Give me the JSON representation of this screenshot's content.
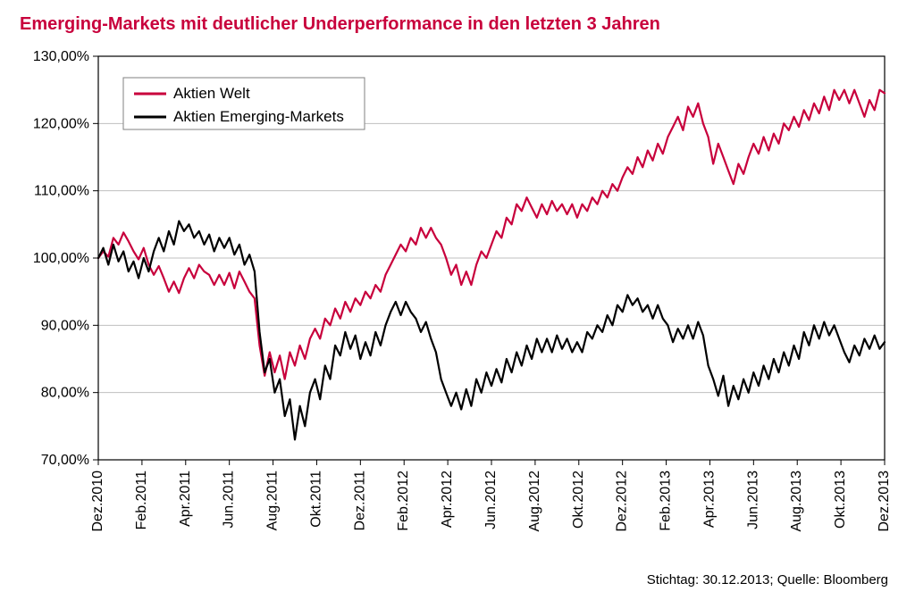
{
  "title": "Emerging-Markets mit deutlicher Underperformance in den letzten 3 Jahren",
  "footer": {
    "stichtag_label": "Stichtag:",
    "stichtag": "30.12.2013;",
    "quelle_label": "Quelle:",
    "quelle": "Bloomberg"
  },
  "chart": {
    "type": "line",
    "background_color": "#ffffff",
    "grid_color": "#bfbfbf",
    "axis_color": "#000000",
    "title_fontsize": 20,
    "label_fontsize": 16,
    "y": {
      "min": 70,
      "max": 130,
      "step": 10,
      "format": "0,00%"
    },
    "x": {
      "labels": [
        "Dez.2010",
        "Feb.2011",
        "Apr.2011",
        "Jun.2011",
        "Aug.2011",
        "Okt.2011",
        "Dez.2011",
        "Feb.2012",
        "Apr.2012",
        "Jun.2012",
        "Aug.2012",
        "Okt.2012",
        "Dez.2012",
        "Feb.2013",
        "Apr.2013",
        "Jun.2013",
        "Aug.2013",
        "Okt.2013",
        "Dez.2013"
      ],
      "n_points": 157,
      "rotated": true
    },
    "legend": {
      "position": "top-left",
      "border_color": "#808080",
      "items": [
        {
          "label": "Aktien Welt",
          "color": "#c8003c",
          "width": 2.2
        },
        {
          "label": "Aktien Emerging-Markets",
          "color": "#000000",
          "width": 2.2
        }
      ]
    },
    "series": [
      {
        "name": "Aktien Welt",
        "color": "#c8003c",
        "line_width": 2.2,
        "values": [
          100.0,
          101.0,
          100.2,
          103.0,
          102.0,
          103.8,
          102.5,
          101.0,
          99.8,
          101.5,
          99.0,
          97.5,
          98.8,
          97.0,
          95.0,
          96.5,
          94.8,
          97.0,
          98.5,
          97.0,
          99.0,
          98.0,
          97.5,
          96.0,
          97.5,
          96.0,
          97.8,
          95.5,
          98.0,
          96.5,
          95.0,
          94.0,
          87.0,
          82.5,
          86.0,
          83.0,
          85.5,
          82.0,
          86.0,
          84.0,
          87.0,
          85.0,
          88.0,
          89.5,
          88.0,
          91.0,
          90.0,
          92.5,
          91.0,
          93.5,
          92.0,
          94.0,
          93.0,
          95.0,
          94.0,
          96.0,
          95.0,
          97.5,
          99.0,
          100.5,
          102.0,
          101.0,
          103.0,
          102.0,
          104.5,
          103.0,
          104.5,
          103.0,
          102.0,
          100.0,
          97.5,
          99.0,
          96.0,
          98.0,
          96.0,
          99.0,
          101.0,
          100.0,
          102.0,
          104.0,
          103.0,
          106.0,
          105.0,
          108.0,
          107.0,
          109.0,
          107.5,
          106.0,
          108.0,
          106.5,
          108.5,
          107.0,
          108.0,
          106.5,
          108.0,
          106.0,
          108.0,
          107.0,
          109.0,
          108.0,
          110.0,
          109.0,
          111.0,
          110.0,
          112.0,
          113.5,
          112.5,
          115.0,
          113.5,
          116.0,
          114.5,
          117.0,
          115.5,
          118.0,
          119.5,
          121.0,
          119.0,
          122.5,
          121.0,
          123.0,
          120.0,
          118.0,
          114.0,
          117.0,
          115.0,
          113.0,
          111.0,
          114.0,
          112.5,
          115.0,
          117.0,
          115.5,
          118.0,
          116.0,
          118.5,
          117.0,
          120.0,
          119.0,
          121.0,
          119.5,
          122.0,
          120.5,
          123.0,
          121.5,
          124.0,
          122.0,
          125.0,
          123.5,
          125.0,
          123.0,
          125.0,
          123.0,
          121.0,
          123.5,
          122.0,
          125.0,
          124.5
        ]
      },
      {
        "name": "Aktien Emerging-Markets",
        "color": "#000000",
        "line_width": 2.2,
        "values": [
          100.0,
          101.5,
          99.0,
          102.0,
          99.5,
          101.0,
          98.0,
          99.5,
          97.0,
          100.0,
          98.0,
          101.0,
          103.0,
          101.0,
          104.0,
          102.0,
          105.5,
          104.0,
          105.0,
          103.0,
          104.0,
          102.0,
          103.5,
          101.0,
          103.0,
          101.5,
          103.0,
          100.5,
          102.0,
          99.0,
          100.5,
          98.0,
          89.0,
          83.0,
          85.0,
          80.0,
          82.0,
          76.5,
          79.0,
          73.0,
          78.0,
          75.0,
          80.0,
          82.0,
          79.0,
          84.0,
          82.0,
          87.0,
          85.5,
          89.0,
          86.5,
          88.5,
          85.0,
          87.5,
          85.5,
          89.0,
          87.0,
          90.0,
          92.0,
          93.5,
          91.5,
          93.5,
          92.0,
          91.0,
          89.0,
          90.5,
          88.0,
          86.0,
          82.0,
          80.0,
          78.0,
          80.0,
          77.5,
          80.5,
          78.0,
          82.0,
          80.0,
          83.0,
          81.0,
          83.5,
          81.5,
          85.0,
          83.0,
          86.0,
          84.0,
          87.0,
          85.0,
          88.0,
          86.0,
          88.0,
          86.0,
          88.5,
          86.5,
          88.0,
          86.0,
          87.5,
          86.0,
          89.0,
          88.0,
          90.0,
          89.0,
          91.5,
          90.0,
          93.0,
          92.0,
          94.5,
          93.0,
          94.0,
          92.0,
          93.0,
          91.0,
          93.0,
          91.0,
          90.0,
          87.5,
          89.5,
          88.0,
          90.0,
          88.0,
          90.5,
          88.5,
          84.0,
          82.0,
          79.5,
          82.5,
          78.0,
          81.0,
          79.0,
          82.0,
          80.0,
          83.0,
          81.0,
          84.0,
          82.0,
          85.0,
          83.0,
          86.0,
          84.0,
          87.0,
          85.0,
          89.0,
          87.0,
          90.0,
          88.0,
          90.5,
          88.5,
          90.0,
          88.0,
          86.0,
          84.5,
          87.0,
          85.5,
          88.0,
          86.5,
          88.5,
          86.5,
          87.5
        ]
      }
    ]
  }
}
